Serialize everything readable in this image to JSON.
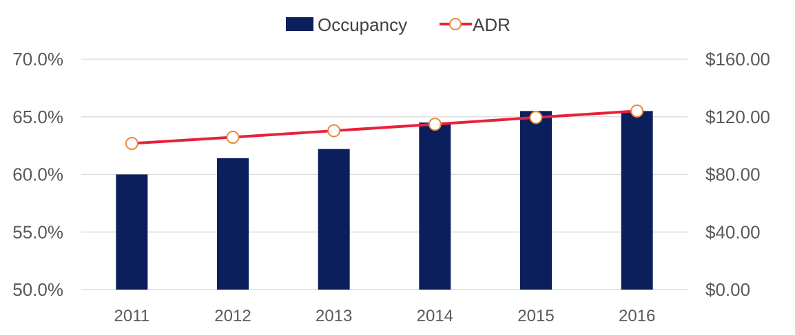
{
  "chart_data": {
    "type": "bar",
    "categories": [
      "2011",
      "2012",
      "2013",
      "2014",
      "2015",
      "2016"
    ],
    "series": [
      {
        "name": "Occupancy",
        "type": "bar",
        "axis": "left",
        "values": [
          60.0,
          61.4,
          62.2,
          64.5,
          65.5,
          65.5
        ]
      },
      {
        "name": "ADR",
        "type": "line",
        "axis": "right",
        "values": [
          101.5,
          105.8,
          110.3,
          114.8,
          119.5,
          124.0
        ]
      }
    ],
    "y_left": {
      "ticks": [
        "70.0%",
        "65.0%",
        "60.0%",
        "55.0%",
        "50.0%"
      ],
      "ylim": [
        50,
        70
      ]
    },
    "y_right": {
      "ticks": [
        "$160.00",
        "$120.00",
        "$80.00",
        "$40.00",
        "$0.00"
      ],
      "ylim": [
        0,
        160
      ]
    },
    "grid": true,
    "legend_position": "top-center",
    "colors": {
      "Occupancy": "#0a1f5c",
      "ADR_line": "#e8213a",
      "ADR_marker": "#e8893a",
      "grid": "#d9d9d9"
    }
  }
}
